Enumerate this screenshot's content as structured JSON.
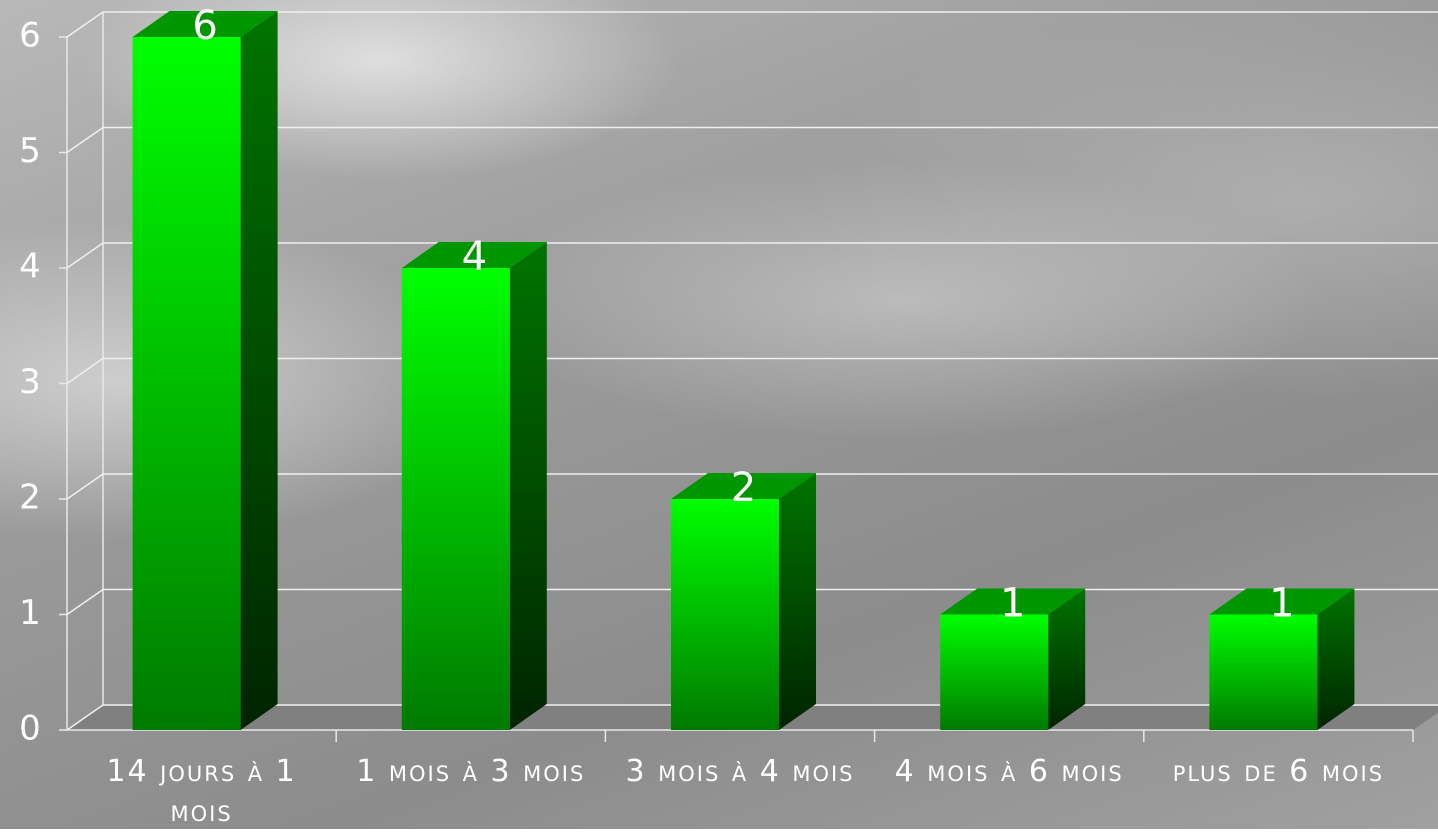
{
  "chart_data": {
    "type": "bar3d",
    "categories": [
      "14 jours à 1 mois",
      "1 mois à 3 mois",
      "3 mois à 4 mois",
      "4 mois à 6 mois",
      "plus de 6 mois"
    ],
    "values": [
      6,
      4,
      2,
      1,
      1
    ],
    "color": "#00ff00",
    "ylim": [
      0,
      6
    ],
    "yticks": [
      0,
      1,
      2,
      3,
      4,
      5,
      6
    ],
    "grid": true
  }
}
